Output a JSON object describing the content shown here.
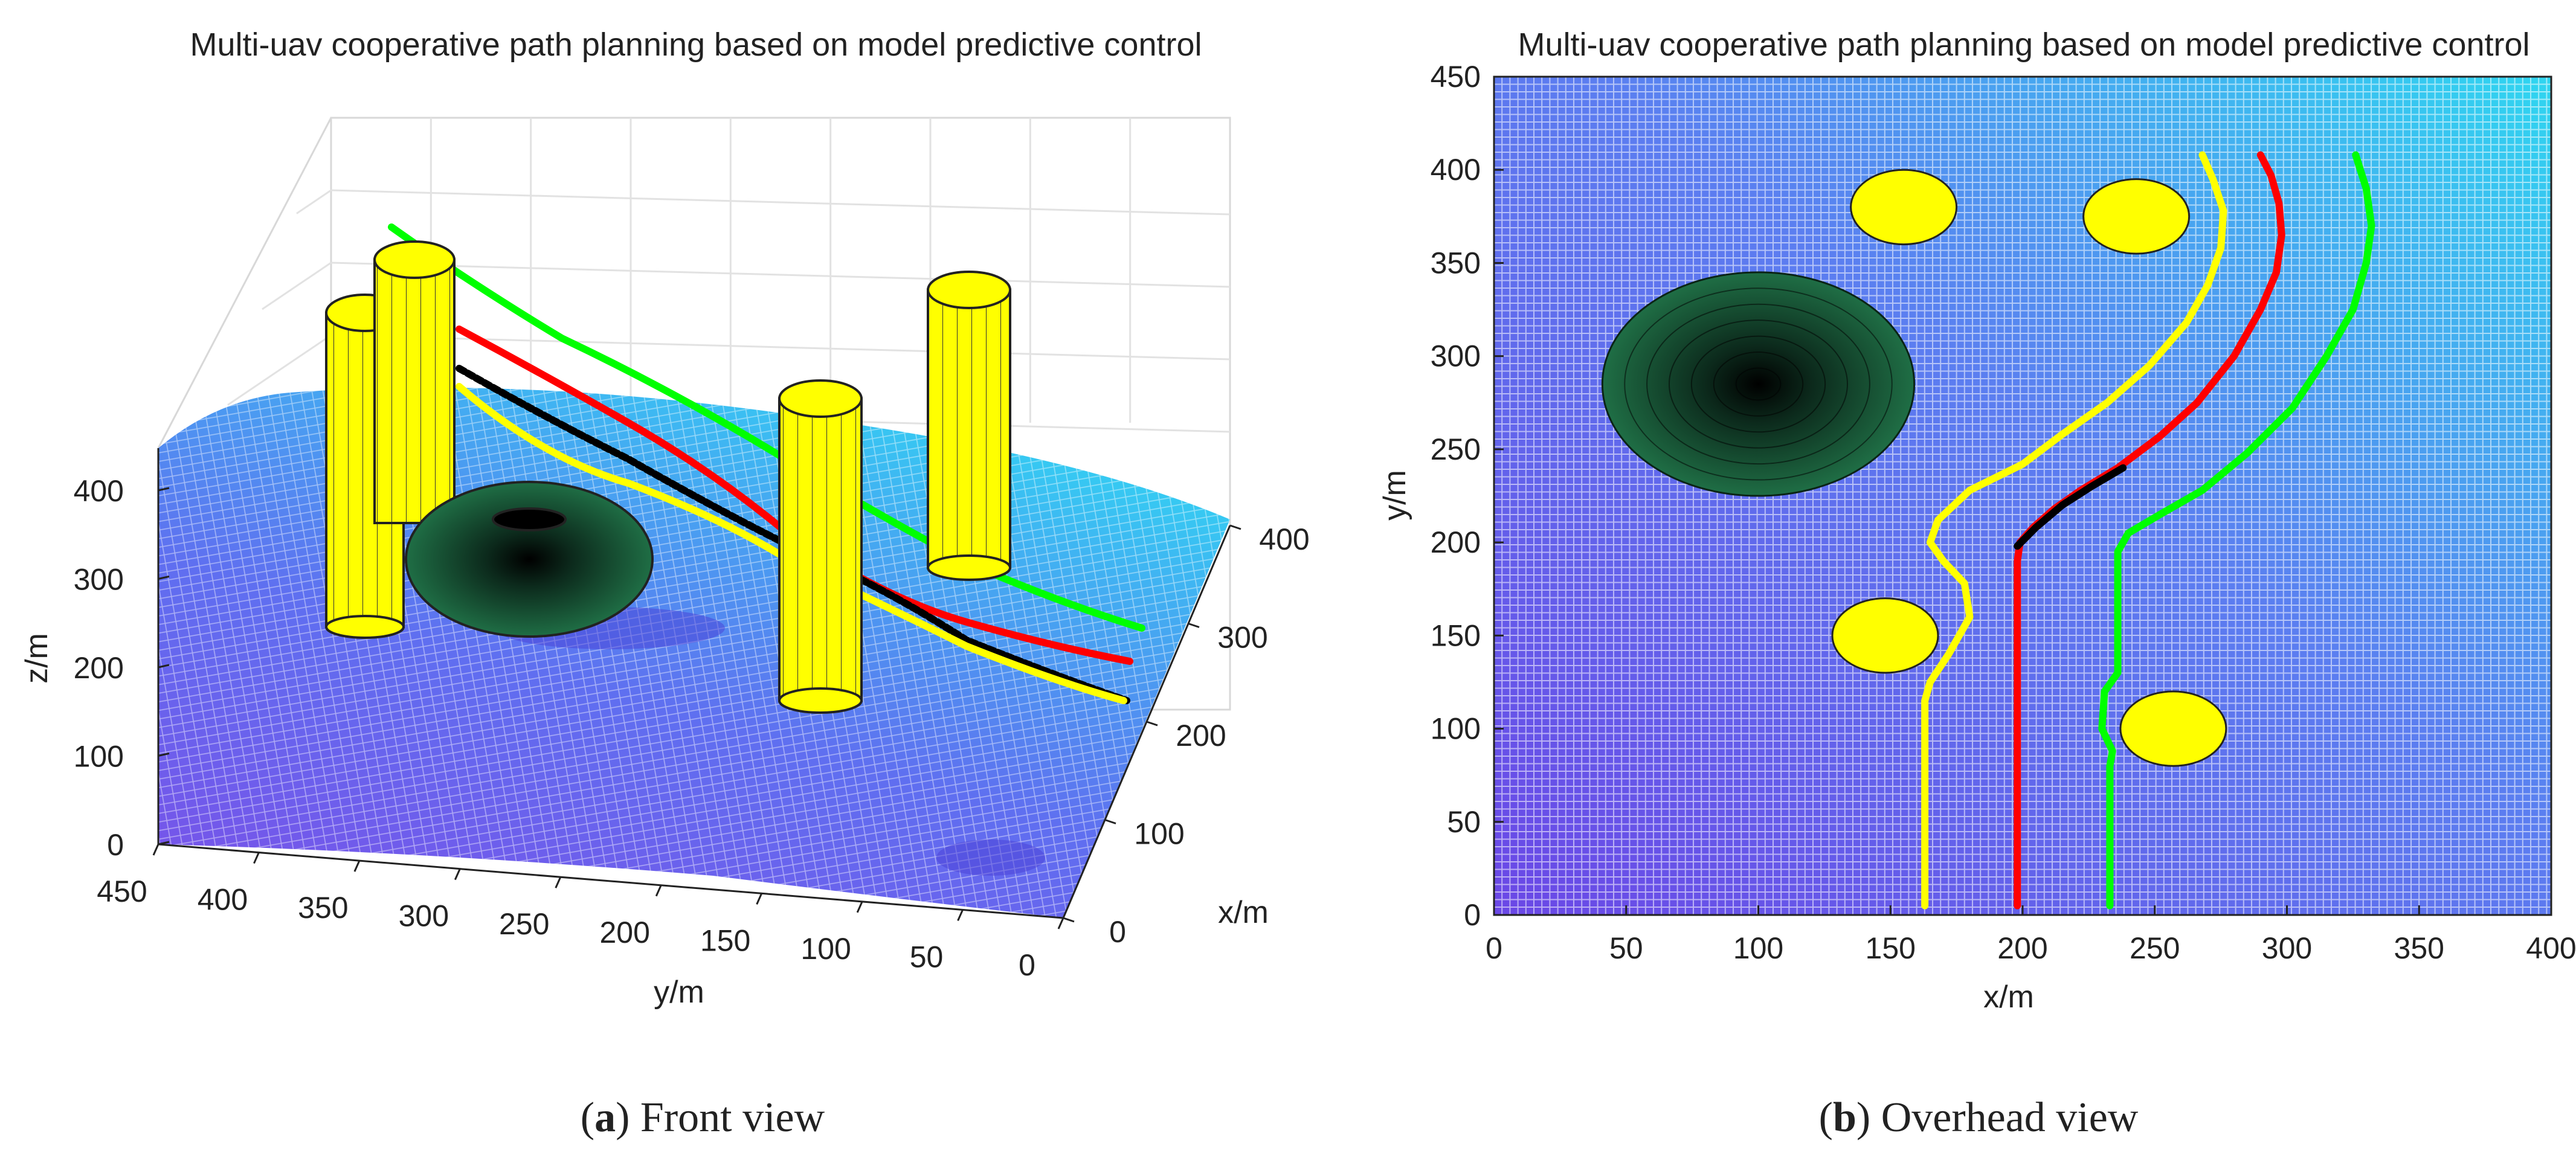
{
  "chart_data": [
    {
      "type": "3d-surface",
      "panel": "a",
      "title": "Multi-uav cooperative path planning based on model predictive control",
      "xlabel": "x/m",
      "ylabel": "y/m",
      "zlabel": "z/m",
      "xlim": [
        0,
        400
      ],
      "ylim": [
        0,
        450
      ],
      "zlim": [
        0,
        450
      ],
      "x_ticks": [
        "0",
        "100",
        "200",
        "300",
        "400"
      ],
      "y_ticks": [
        "450",
        "400",
        "350",
        "300",
        "250",
        "200",
        "150",
        "100",
        "50",
        "0"
      ],
      "z_ticks": [
        "0",
        "100",
        "200",
        "300",
        "400"
      ],
      "surface": "terrain mesh (blue to cyan colormap)",
      "obstacles": {
        "cylinders": [
          {
            "x": 155,
            "y": 380,
            "color": "#ffff00"
          },
          {
            "x": 245,
            "y": 375,
            "color": "#ffff00"
          },
          {
            "x": 150,
            "y": 150,
            "color": "#ffff00"
          },
          {
            "x": 260,
            "y": 100,
            "color": "#ffff00"
          }
        ],
        "ellipsoid": {
          "x": 100,
          "y": 285,
          "color": "#1f6e45"
        }
      },
      "series": [
        {
          "name": "yellow path",
          "color": "#ffff00"
        },
        {
          "name": "red path",
          "color": "#ff0000"
        },
        {
          "name": "green path",
          "color": "#00ff00"
        },
        {
          "name": "black path",
          "color": "#000000"
        }
      ]
    },
    {
      "type": "line",
      "panel": "b",
      "title": "Multi-uav cooperative path planning based on model predictive control",
      "xlabel": "x/m",
      "ylabel": "y/m",
      "xlim": [
        0,
        400
      ],
      "ylim": [
        0,
        450
      ],
      "x_ticks": [
        0,
        50,
        100,
        150,
        200,
        250,
        300,
        350,
        400
      ],
      "y_ticks": [
        0,
        50,
        100,
        150,
        200,
        250,
        300,
        350,
        400,
        450
      ],
      "background": "terrain mesh (blue to cyan)",
      "obstacles": {
        "circles": [
          {
            "x": 155,
            "y": 380,
            "r": 20,
            "color": "#ffff00"
          },
          {
            "x": 243,
            "y": 375,
            "r": 20,
            "color": "#ffff00"
          },
          {
            "x": 148,
            "y": 150,
            "r": 20,
            "color": "#ffff00"
          },
          {
            "x": 257,
            "y": 100,
            "r": 20,
            "color": "#ffff00"
          }
        ],
        "ellipse": {
          "x": 100,
          "y": 285,
          "rx": 59,
          "ry": 60,
          "color": "#1f6e45"
        }
      },
      "series": [
        {
          "name": "yellow path",
          "color": "#ffff00",
          "x": [
            163,
            163,
            163,
            163,
            165,
            172,
            180,
            178,
            170,
            165,
            168,
            180,
            200,
            215,
            232,
            248,
            262,
            270,
            275,
            276,
            272,
            268
          ],
          "y": [
            5,
            40,
            80,
            115,
            125,
            140,
            160,
            178,
            190,
            200,
            212,
            228,
            242,
            258,
            275,
            295,
            318,
            338,
            358,
            378,
            395,
            408
          ]
        },
        {
          "name": "red path",
          "color": "#ff0000",
          "x": [
            198,
            198,
            198,
            198,
            198,
            199,
            204,
            212,
            222,
            236,
            252,
            266,
            280,
            290,
            296,
            298,
            297,
            294,
            290
          ],
          "y": [
            5,
            50,
            100,
            150,
            190,
            200,
            208,
            218,
            228,
            240,
            257,
            275,
            300,
            325,
            345,
            365,
            382,
            397,
            408
          ]
        },
        {
          "name": "black path",
          "color": "#000000",
          "x": [
            198,
            205,
            215,
            226,
            238
          ],
          "y": [
            198,
            208,
            220,
            230,
            240
          ]
        },
        {
          "name": "green path",
          "color": "#00ff00",
          "x": [
            233,
            233,
            233,
            234,
            230,
            231,
            236,
            236,
            236,
            236,
            240,
            252,
            268,
            285,
            302,
            315,
            325,
            330,
            332,
            330,
            326
          ],
          "y": [
            5,
            40,
            80,
            88,
            100,
            120,
            130,
            150,
            180,
            195,
            205,
            215,
            228,
            248,
            272,
            300,
            325,
            350,
            370,
            390,
            408
          ]
        }
      ]
    }
  ],
  "captions": {
    "a": {
      "label": "(a)",
      "letter": "a",
      "text": "Front view"
    },
    "b": {
      "label": "(b)",
      "letter": "b",
      "text": "Overhead view"
    }
  }
}
